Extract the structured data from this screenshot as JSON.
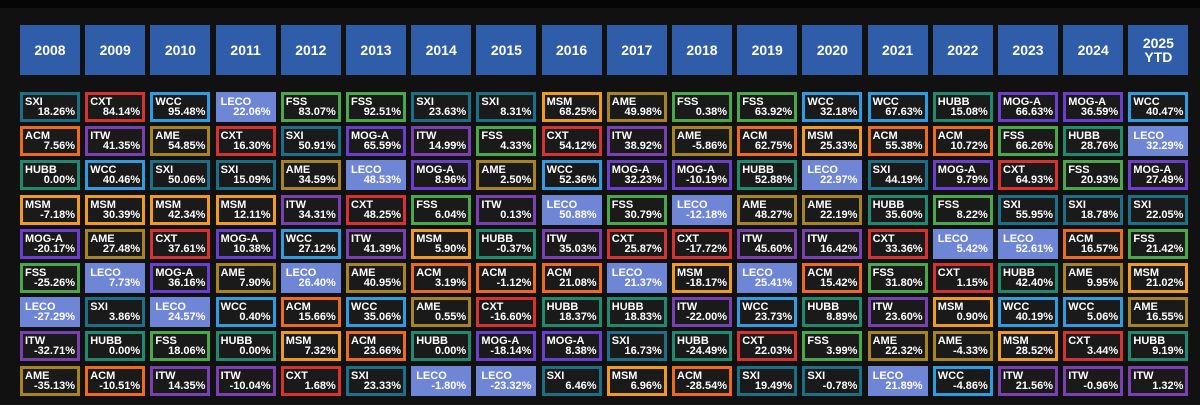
{
  "chart_data": {
    "type": "table",
    "title": "",
    "columns": [
      "2008",
      "2009",
      "2010",
      "2011",
      "2012",
      "2013",
      "2014",
      "2015",
      "2016",
      "2017",
      "2018",
      "2019",
      "2020",
      "2021",
      "2022",
      "2023",
      "2024",
      "2025\nYTD"
    ],
    "ticker_colors": {
      "SXI": "#1b6f86",
      "CXT": "#d6322f",
      "WCC": "#2f9be0",
      "LECO": "#6f86d6",
      "FSS": "#4aa84a",
      "MSM": "#f09a1e",
      "AME": "#a88420",
      "ACM": "#ee6a1c",
      "ITW": "#7a3fb0",
      "HUBB": "#1f8a6e",
      "MOG-A": "#6a3fd0"
    },
    "filled_ticker": "LECO",
    "rows": [
      [
        [
          "SXI",
          "18.26%"
        ],
        [
          "CXT",
          "84.14%"
        ],
        [
          "WCC",
          "95.48%"
        ],
        [
          "LECO",
          "22.06%"
        ],
        [
          "FSS",
          "83.07%"
        ],
        [
          "FSS",
          "92.51%"
        ],
        [
          "SXI",
          "23.63%"
        ],
        [
          "SXI",
          "8.31%"
        ],
        [
          "MSM",
          "68.25%"
        ],
        [
          "AME",
          "49.98%"
        ],
        [
          "FSS",
          "0.38%"
        ],
        [
          "FSS",
          "63.92%"
        ],
        [
          "WCC",
          "32.18%"
        ],
        [
          "WCC",
          "67.63%"
        ],
        [
          "HUBB",
          "15.08%"
        ],
        [
          "MOG-A",
          "66.63%"
        ],
        [
          "MOG-A",
          "36.59%"
        ],
        [
          "WCC",
          "40.47%"
        ]
      ],
      [
        [
          "ACM",
          "7.56%"
        ],
        [
          "ITW",
          "41.35%"
        ],
        [
          "AME",
          "54.85%"
        ],
        [
          "CXT",
          "16.30%"
        ],
        [
          "SXI",
          "50.91%"
        ],
        [
          "MOG-A",
          "65.59%"
        ],
        [
          "ITW",
          "14.99%"
        ],
        [
          "FSS",
          "4.33%"
        ],
        [
          "CXT",
          "54.12%"
        ],
        [
          "ITW",
          "38.92%"
        ],
        [
          "AME",
          "-5.86%"
        ],
        [
          "ACM",
          "62.75%"
        ],
        [
          "MSM",
          "25.33%"
        ],
        [
          "ACM",
          "55.38%"
        ],
        [
          "ACM",
          "10.72%"
        ],
        [
          "FSS",
          "66.26%"
        ],
        [
          "HUBB",
          "28.76%"
        ],
        [
          "LECO",
          "32.29%"
        ]
      ],
      [
        [
          "HUBB",
          "0.00%"
        ],
        [
          "WCC",
          "40.46%"
        ],
        [
          "SXI",
          "50.06%"
        ],
        [
          "SXI",
          "15.09%"
        ],
        [
          "AME",
          "34.59%"
        ],
        [
          "LECO",
          "48.53%"
        ],
        [
          "MOG-A",
          "8.96%"
        ],
        [
          "AME",
          "2.50%"
        ],
        [
          "WCC",
          "52.36%"
        ],
        [
          "MOG-A",
          "32.23%"
        ],
        [
          "MOG-A",
          "-10.19%"
        ],
        [
          "HUBB",
          "52.88%"
        ],
        [
          "LECO",
          "22.97%"
        ],
        [
          "SXI",
          "44.19%"
        ],
        [
          "MOG-A",
          "9.79%"
        ],
        [
          "CXT",
          "64.93%"
        ],
        [
          "FSS",
          "20.93%"
        ],
        [
          "MOG-A",
          "27.49%"
        ]
      ],
      [
        [
          "MSM",
          "-7.18%"
        ],
        [
          "MSM",
          "30.39%"
        ],
        [
          "MSM",
          "42.34%"
        ],
        [
          "MSM",
          "12.11%"
        ],
        [
          "ITW",
          "34.31%"
        ],
        [
          "CXT",
          "48.25%"
        ],
        [
          "FSS",
          "6.04%"
        ],
        [
          "ITW",
          "0.13%"
        ],
        [
          "LECO",
          "50.88%"
        ],
        [
          "FSS",
          "30.79%"
        ],
        [
          "LECO",
          "-12.18%"
        ],
        [
          "AME",
          "48.27%"
        ],
        [
          "AME",
          "22.19%"
        ],
        [
          "HUBB",
          "35.60%"
        ],
        [
          "FSS",
          "8.22%"
        ],
        [
          "SXI",
          "55.95%"
        ],
        [
          "SXI",
          "18.78%"
        ],
        [
          "SXI",
          "22.05%"
        ]
      ],
      [
        [
          "MOG-A",
          "-20.17%"
        ],
        [
          "AME",
          "27.48%"
        ],
        [
          "CXT",
          "37.61%"
        ],
        [
          "MOG-A",
          "10.38%"
        ],
        [
          "WCC",
          "27.12%"
        ],
        [
          "ITW",
          "41.39%"
        ],
        [
          "MSM",
          "5.90%"
        ],
        [
          "HUBB",
          "-0.37%"
        ],
        [
          "ITW",
          "35.03%"
        ],
        [
          "CXT",
          "25.87%"
        ],
        [
          "CXT",
          "-17.72%"
        ],
        [
          "ITW",
          "45.60%"
        ],
        [
          "ITW",
          "16.42%"
        ],
        [
          "CXT",
          "33.36%"
        ],
        [
          "LECO",
          "5.42%"
        ],
        [
          "LECO",
          "52.61%"
        ],
        [
          "ACM",
          "16.57%"
        ],
        [
          "FSS",
          "21.42%"
        ]
      ],
      [
        [
          "FSS",
          "-25.26%"
        ],
        [
          "LECO",
          "7.73%"
        ],
        [
          "MOG-A",
          "36.16%"
        ],
        [
          "AME",
          "7.90%"
        ],
        [
          "LECO",
          "26.40%"
        ],
        [
          "AME",
          "40.95%"
        ],
        [
          "ACM",
          "3.19%"
        ],
        [
          "ACM",
          "-1.12%"
        ],
        [
          "ACM",
          "21.08%"
        ],
        [
          "LECO",
          "21.37%"
        ],
        [
          "MSM",
          "-18.17%"
        ],
        [
          "LECO",
          "25.41%"
        ],
        [
          "ACM",
          "15.42%"
        ],
        [
          "FSS",
          "31.80%"
        ],
        [
          "CXT",
          "1.15%"
        ],
        [
          "HUBB",
          "42.40%"
        ],
        [
          "AME",
          "9.95%"
        ],
        [
          "MSM",
          "21.02%"
        ]
      ],
      [
        [
          "LECO",
          "-27.29%"
        ],
        [
          "SXI",
          "3.86%"
        ],
        [
          "LECO",
          "24.57%"
        ],
        [
          "WCC",
          "0.40%"
        ],
        [
          "ACM",
          "15.66%"
        ],
        [
          "WCC",
          "35.06%"
        ],
        [
          "AME",
          "0.55%"
        ],
        [
          "CXT",
          "-16.60%"
        ],
        [
          "HUBB",
          "18.37%"
        ],
        [
          "HUBB",
          "18.83%"
        ],
        [
          "ITW",
          "-22.00%"
        ],
        [
          "WCC",
          "23.73%"
        ],
        [
          "HUBB",
          "8.89%"
        ],
        [
          "ITW",
          "23.60%"
        ],
        [
          "MSM",
          "0.90%"
        ],
        [
          "WCC",
          "40.19%"
        ],
        [
          "WCC",
          "5.06%"
        ],
        [
          "AME",
          "16.55%"
        ]
      ],
      [
        [
          "ITW",
          "-32.71%"
        ],
        [
          "HUBB",
          "0.00%"
        ],
        [
          "FSS",
          "18.06%"
        ],
        [
          "HUBB",
          "0.00%"
        ],
        [
          "MSM",
          "7.32%"
        ],
        [
          "ACM",
          "23.66%"
        ],
        [
          "HUBB",
          "0.00%"
        ],
        [
          "MOG-A",
          "-18.14%"
        ],
        [
          "MOG-A",
          "8.38%"
        ],
        [
          "SXI",
          "16.73%"
        ],
        [
          "HUBB",
          "-24.49%"
        ],
        [
          "CXT",
          "22.03%"
        ],
        [
          "FSS",
          "3.99%"
        ],
        [
          "AME",
          "22.32%"
        ],
        [
          "AME",
          "-4.33%"
        ],
        [
          "MSM",
          "28.52%"
        ],
        [
          "CXT",
          "3.44%"
        ],
        [
          "HUBB",
          "9.19%"
        ]
      ],
      [
        [
          "AME",
          "-35.13%"
        ],
        [
          "ACM",
          "-10.51%"
        ],
        [
          "ITW",
          "14.35%"
        ],
        [
          "ITW",
          "-10.04%"
        ],
        [
          "CXT",
          "1.68%"
        ],
        [
          "SXI",
          "23.33%"
        ],
        [
          "LECO",
          "-1.80%"
        ],
        [
          "LECO",
          "-23.32%"
        ],
        [
          "SXI",
          "6.46%"
        ],
        [
          "MSM",
          "6.96%"
        ],
        [
          "ACM",
          "-28.54%"
        ],
        [
          "SXI",
          "19.49%"
        ],
        [
          "SXI",
          "-0.78%"
        ],
        [
          "LECO",
          "21.89%"
        ],
        [
          "WCC",
          "-4.86%"
        ],
        [
          "ITW",
          "21.56%"
        ],
        [
          "ITW",
          "-0.96%"
        ],
        [
          "ITW",
          "1.32%"
        ]
      ]
    ]
  }
}
